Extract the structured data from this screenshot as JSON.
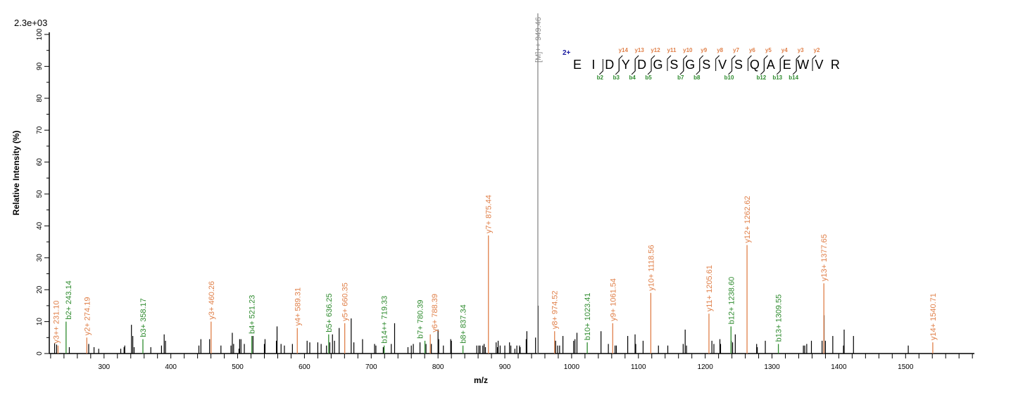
{
  "chart_data": {
    "type": "bar",
    "subtype": "mass-spectrum",
    "max_intensity_label": "2.3e+03",
    "xlabel": "m/z",
    "ylabel": "Relative  Intensity (%)",
    "xlim": [
      218,
      1603
    ],
    "ylim": [
      0,
      100
    ],
    "x_major_ticks": [
      300,
      400,
      500,
      600,
      700,
      800,
      900,
      1000,
      1100,
      1200,
      1300,
      1400,
      1500
    ],
    "x_minor_step": 20,
    "y_major_ticks": [
      0,
      10,
      20,
      30,
      40,
      50,
      60,
      70,
      80,
      90,
      100
    ],
    "y_minor_step": 5,
    "colors": {
      "y": "#e0804a",
      "b": "#2e8b2e",
      "precursor": "#8a8a8a",
      "unassigned": "#000000",
      "charge": "#1a1aa0"
    },
    "annotated_peaks": [
      {
        "mz": 231.1,
        "intensity": 2.5,
        "label": "y3++ 231.10",
        "type": "y"
      },
      {
        "mz": 243.14,
        "intensity": 10,
        "label": "b2+ 243.14",
        "type": "b"
      },
      {
        "mz": 274.19,
        "intensity": 5,
        "label": "y2+ 274.19",
        "type": "y"
      },
      {
        "mz": 358.17,
        "intensity": 4.5,
        "label": "b3+ 358.17",
        "type": "b"
      },
      {
        "mz": 460.26,
        "intensity": 10,
        "label": "y3+ 460.26",
        "type": "y"
      },
      {
        "mz": 521.23,
        "intensity": 5.5,
        "label": "b4+ 521.23",
        "type": "b"
      },
      {
        "mz": 589.31,
        "intensity": 8,
        "label": "y4+ 589.31",
        "type": "y"
      },
      {
        "mz": 636.25,
        "intensity": 6,
        "label": "b5+ 636.25",
        "type": "b"
      },
      {
        "mz": 660.35,
        "intensity": 9.5,
        "label": "y5+ 660.35",
        "type": "y"
      },
      {
        "mz": 719.33,
        "intensity": 2.5,
        "label": "b14++ 719.33",
        "type": "b"
      },
      {
        "mz": 780.39,
        "intensity": 4,
        "label": "b7+ 780.39",
        "type": "b"
      },
      {
        "mz": 788.39,
        "intensity": 6,
        "label": "y6+ 788.39",
        "type": "y"
      },
      {
        "mz": 837.34,
        "intensity": 2.5,
        "label": "b8+ 837.34",
        "type": "b"
      },
      {
        "mz": 875.44,
        "intensity": 37,
        "label": "y7+ 875.44",
        "type": "y"
      },
      {
        "mz": 949.46,
        "intensity": 100,
        "label": "[M]++ 949.46",
        "type": "precursor"
      },
      {
        "mz": 974.52,
        "intensity": 7,
        "label": "y8+ 974.52",
        "type": "y"
      },
      {
        "mz": 1023.41,
        "intensity": 3.5,
        "label": "b10+ 1023.41",
        "type": "b"
      },
      {
        "mz": 1061.54,
        "intensity": 9.5,
        "label": "y9+ 1061.54",
        "type": "y"
      },
      {
        "mz": 1118.56,
        "intensity": 19,
        "label": "y10+ 1118.56",
        "type": "y"
      },
      {
        "mz": 1205.61,
        "intensity": 12.5,
        "label": "y11+ 1205.61",
        "type": "y"
      },
      {
        "mz": 1238.6,
        "intensity": 8.5,
        "label": "b12+ 1238.60",
        "type": "b"
      },
      {
        "mz": 1262.62,
        "intensity": 34,
        "label": "y12+ 1262.62",
        "type": "y"
      },
      {
        "mz": 1309.55,
        "intensity": 3,
        "label": "b13+ 1309.55",
        "type": "b"
      },
      {
        "mz": 1377.65,
        "intensity": 22,
        "label": "y13+ 1377.65",
        "type": "y"
      },
      {
        "mz": 1540.71,
        "intensity": 3.5,
        "label": "y14+ 1540.71",
        "type": "y"
      }
    ],
    "unassigned_peaks": [
      [
        226,
        3.2
      ],
      [
        229,
        2.8
      ],
      [
        248,
        2
      ],
      [
        277,
        3
      ],
      [
        285,
        2
      ],
      [
        292,
        1.5
      ],
      [
        325,
        1.5
      ],
      [
        330,
        2
      ],
      [
        331,
        2.5
      ],
      [
        341,
        9
      ],
      [
        343,
        5.5
      ],
      [
        345,
        2
      ],
      [
        370,
        2
      ],
      [
        386,
        2.5
      ],
      [
        390,
        6
      ],
      [
        392,
        4
      ],
      [
        442,
        2.5
      ],
      [
        445,
        4.5
      ],
      [
        458,
        4.5
      ],
      [
        475,
        2.5
      ],
      [
        490,
        2.5
      ],
      [
        492,
        6.5
      ],
      [
        494,
        3
      ],
      [
        502,
        1.5
      ],
      [
        503,
        4.5
      ],
      [
        505,
        4.5
      ],
      [
        510,
        3
      ],
      [
        523,
        5.5
      ],
      [
        540,
        3
      ],
      [
        541,
        4.5
      ],
      [
        558,
        4
      ],
      [
        559,
        8.5
      ],
      [
        565,
        3
      ],
      [
        570,
        2.5
      ],
      [
        582,
        3
      ],
      [
        604,
        4
      ],
      [
        608,
        3.5
      ],
      [
        620,
        3.5
      ],
      [
        625,
        3
      ],
      [
        633,
        2.5
      ],
      [
        638,
        3.5
      ],
      [
        642,
        6
      ],
      [
        645,
        4
      ],
      [
        652,
        8
      ],
      [
        670,
        11
      ],
      [
        674,
        3.5
      ],
      [
        687,
        4.5
      ],
      [
        705,
        3
      ],
      [
        707,
        2.5
      ],
      [
        718,
        2
      ],
      [
        730,
        3
      ],
      [
        735,
        9.5
      ],
      [
        755,
        2
      ],
      [
        760,
        2.5
      ],
      [
        763,
        3
      ],
      [
        773,
        3.5
      ],
      [
        782,
        3
      ],
      [
        790,
        3
      ],
      [
        800,
        7.5
      ],
      [
        801,
        4.5
      ],
      [
        808,
        2.5
      ],
      [
        819,
        4.5
      ],
      [
        820,
        4
      ],
      [
        858,
        2.5
      ],
      [
        861,
        2.5
      ],
      [
        863,
        2.5
      ],
      [
        867,
        2.5
      ],
      [
        869,
        3
      ],
      [
        871,
        2
      ],
      [
        887,
        3.5
      ],
      [
        889,
        2
      ],
      [
        890,
        4
      ],
      [
        893,
        2.5
      ],
      [
        900,
        2.5
      ],
      [
        907,
        3.5
      ],
      [
        909,
        2.5
      ],
      [
        915,
        1.5
      ],
      [
        918,
        2.5
      ],
      [
        922,
        2.5
      ],
      [
        923,
        2
      ],
      [
        932,
        4.5
      ],
      [
        933,
        7
      ],
      [
        946,
        5
      ],
      [
        950,
        15
      ],
      [
        976,
        4
      ],
      [
        979,
        2.5
      ],
      [
        982,
        2.5
      ],
      [
        987,
        5.5
      ],
      [
        1003,
        4
      ],
      [
        1005,
        4.5
      ],
      [
        1008,
        6.5
      ],
      [
        1044,
        7
      ],
      [
        1055,
        3
      ],
      [
        1065,
        2.5
      ],
      [
        1067,
        2.5
      ],
      [
        1084,
        5.5
      ],
      [
        1095,
        6
      ],
      [
        1096,
        3
      ],
      [
        1107,
        4
      ],
      [
        1130,
        2.5
      ],
      [
        1144,
        2.5
      ],
      [
        1167,
        3
      ],
      [
        1170,
        7.5
      ],
      [
        1172,
        2.5
      ],
      [
        1210,
        4
      ],
      [
        1213,
        3
      ],
      [
        1222,
        4.5
      ],
      [
        1223,
        3
      ],
      [
        1239,
        4
      ],
      [
        1241,
        3.5
      ],
      [
        1245,
        6
      ],
      [
        1277,
        3
      ],
      [
        1278,
        2
      ],
      [
        1290,
        4
      ],
      [
        1347,
        2.5
      ],
      [
        1349,
        2.5
      ],
      [
        1352,
        3
      ],
      [
        1359,
        4
      ],
      [
        1375,
        4
      ],
      [
        1378,
        12
      ],
      [
        1380,
        4
      ],
      [
        1391,
        5.5
      ],
      [
        1407,
        2.5
      ],
      [
        1408,
        7.5
      ],
      [
        1422,
        5.5
      ],
      [
        1504,
        2.5
      ]
    ],
    "sequence": {
      "charge": "2+",
      "residues": [
        "E",
        "I",
        "D",
        "Y",
        "D",
        "G",
        "S",
        "G",
        "S",
        "V",
        "S",
        "Q",
        "A",
        "E",
        "W",
        "V",
        "R"
      ],
      "y_ions": [
        {
          "gap": 3,
          "label": "y14"
        },
        {
          "gap": 4,
          "label": "y13"
        },
        {
          "gap": 5,
          "label": "y12"
        },
        {
          "gap": 6,
          "label": "y11"
        },
        {
          "gap": 7,
          "label": "y10"
        },
        {
          "gap": 8,
          "label": "y9"
        },
        {
          "gap": 9,
          "label": "y8"
        },
        {
          "gap": 10,
          "label": "y7"
        },
        {
          "gap": 11,
          "label": "y6"
        },
        {
          "gap": 12,
          "label": "y5"
        },
        {
          "gap": 13,
          "label": "y4"
        },
        {
          "gap": 14,
          "label": "y3"
        },
        {
          "gap": 15,
          "label": "y2"
        }
      ],
      "b_ions": [
        {
          "gap": 2,
          "label": "b2"
        },
        {
          "gap": 3,
          "label": "b3"
        },
        {
          "gap": 4,
          "label": "b4"
        },
        {
          "gap": 5,
          "label": "b5"
        },
        {
          "gap": 7,
          "label": "b7"
        },
        {
          "gap": 8,
          "label": "b8"
        },
        {
          "gap": 10,
          "label": "b10"
        },
        {
          "gap": 12,
          "label": "b12"
        },
        {
          "gap": 13,
          "label": "b13"
        },
        {
          "gap": 14,
          "label": "b14"
        }
      ]
    }
  }
}
